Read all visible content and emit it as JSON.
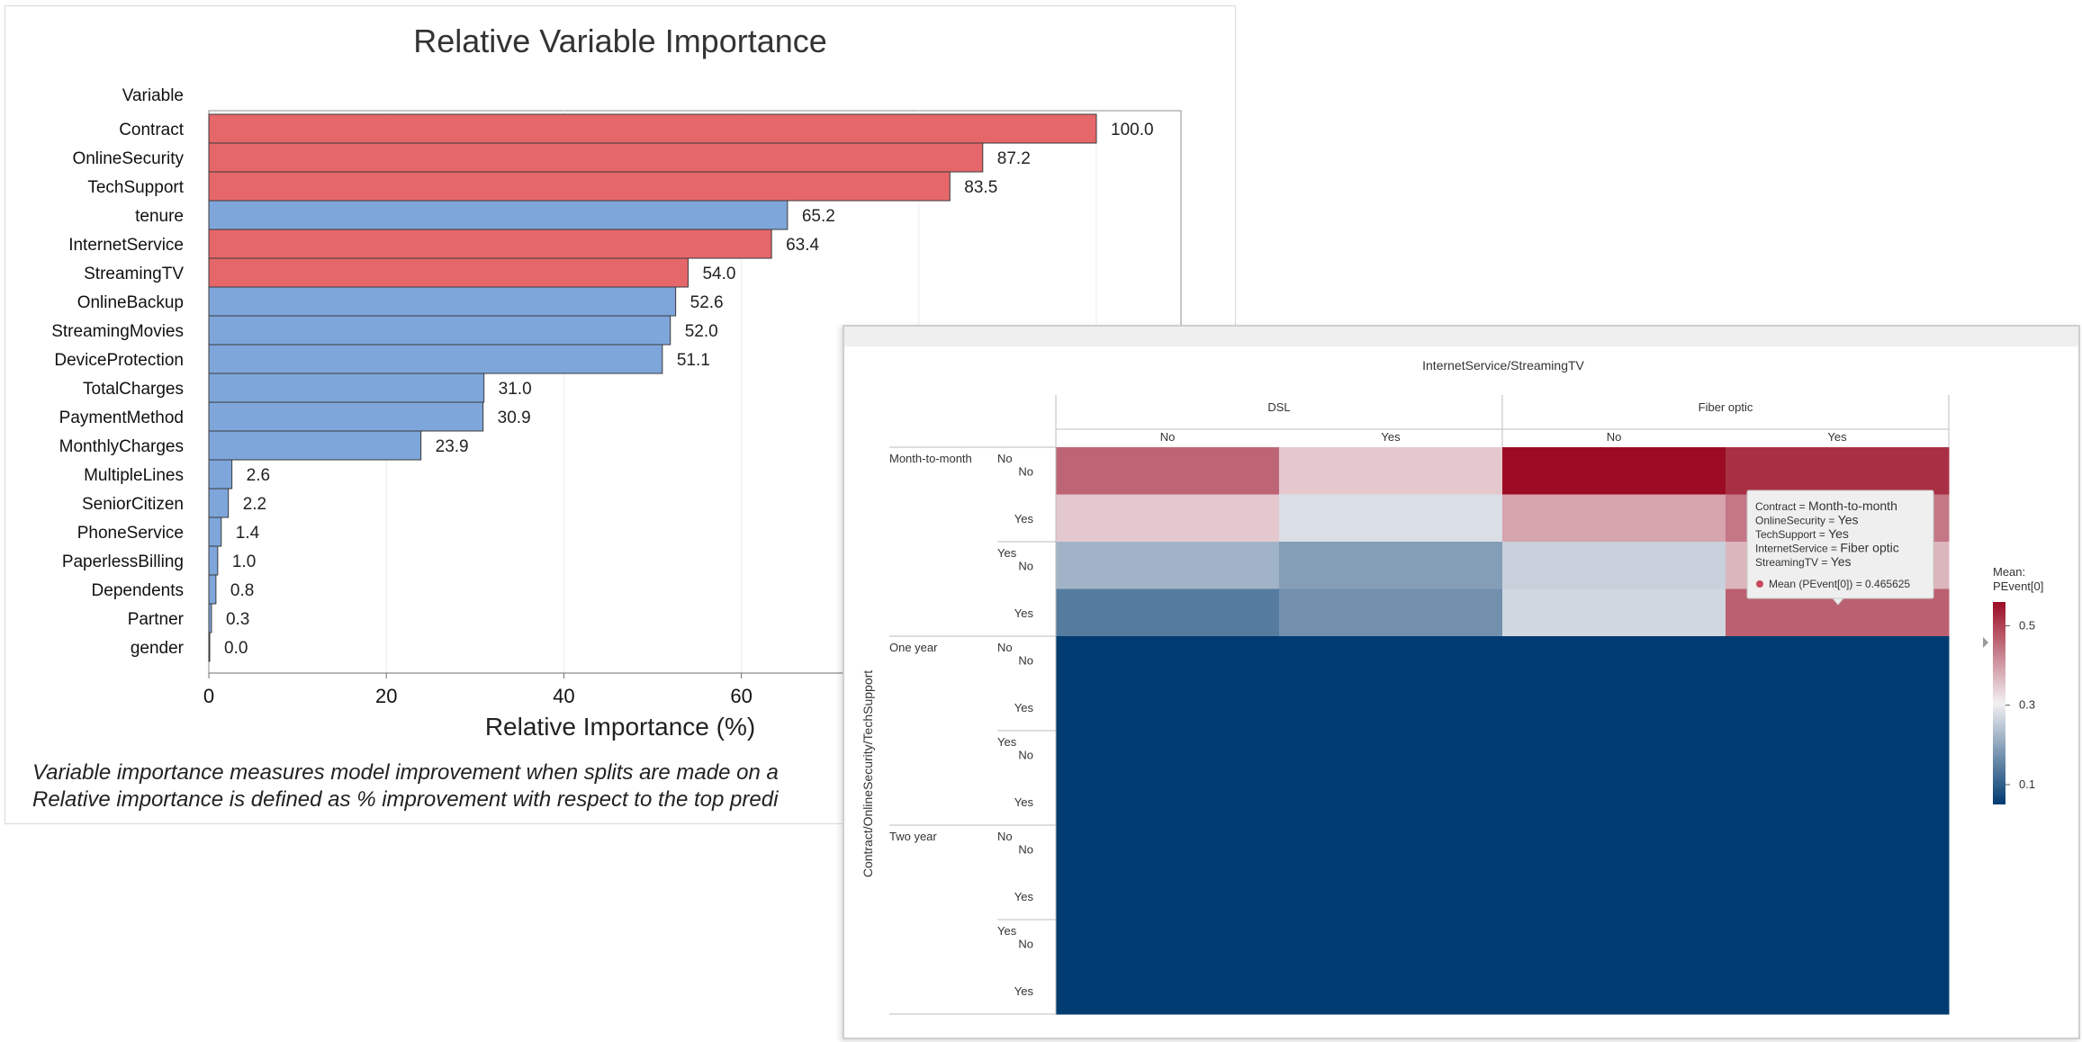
{
  "chart_data": [
    {
      "type": "bar",
      "orientation": "horizontal",
      "title": "Relative Variable Importance",
      "ylabel": "Variable",
      "xlabel": "Relative Importance (%)",
      "xticks": [
        0,
        20,
        40,
        60
      ],
      "xlim": [
        0,
        100
      ],
      "grid": true,
      "categories": [
        "Contract",
        "OnlineSecurity",
        "TechSupport",
        "tenure",
        "InternetService",
        "StreamingTV",
        "OnlineBackup",
        "StreamingMovies",
        "DeviceProtection",
        "TotalCharges",
        "PaymentMethod",
        "MonthlyCharges",
        "MultipleLines",
        "SeniorCitizen",
        "PhoneService",
        "PaperlessBilling",
        "Dependents",
        "Partner",
        "gender"
      ],
      "values": [
        100.0,
        87.2,
        83.5,
        65.2,
        63.4,
        54.0,
        52.6,
        52.0,
        51.1,
        31.0,
        30.9,
        23.9,
        2.6,
        2.2,
        1.4,
        1.0,
        0.8,
        0.3,
        0.0
      ],
      "value_labels": [
        "100.0",
        "87.2",
        "83.5",
        "65.2",
        "63.4",
        "54.0",
        "52.6",
        "52.0",
        "51.1",
        "31.0",
        "30.9",
        "23.9",
        "2.6",
        "2.2",
        "1.4",
        "1.0",
        "0.8",
        "0.3",
        "0.0"
      ],
      "highlighted": [
        true,
        true,
        true,
        false,
        true,
        true,
        false,
        false,
        false,
        false,
        false,
        false,
        false,
        false,
        false,
        false,
        false,
        false,
        false
      ],
      "colors": {
        "highlight": "#e5676a",
        "normal": "#7ea6db",
        "edge": "#3a3a3a"
      },
      "footnote": [
        "Variable importance measures model improvement when splits are made on a",
        "Relative importance is defined as % improvement with respect to the top predi"
      ]
    },
    {
      "type": "heatmap",
      "title": "InternetService/StreamingTV",
      "ylabel": "Contract/OnlineSecurity/TechSupport",
      "column_groups": [
        {
          "label": "DSL",
          "columns": [
            "No",
            "Yes"
          ]
        },
        {
          "label": "Fiber optic",
          "columns": [
            "No",
            "Yes"
          ]
        }
      ],
      "row_groups": [
        {
          "label": "Month-to-month",
          "subgroups": [
            {
              "label": "No",
              "rows": [
                "No",
                "Yes"
              ]
            },
            {
              "label": "Yes",
              "rows": [
                "No",
                "Yes"
              ]
            }
          ]
        },
        {
          "label": "One year",
          "subgroups": [
            {
              "label": "No",
              "rows": [
                "No",
                "Yes"
              ]
            },
            {
              "label": "Yes",
              "rows": [
                "No",
                "Yes"
              ]
            }
          ]
        },
        {
          "label": "Two year",
          "subgroups": [
            {
              "label": "No",
              "rows": [
                "No",
                "Yes"
              ]
            },
            {
              "label": "Yes",
              "rows": [
                "No",
                "Yes"
              ]
            }
          ]
        }
      ],
      "values": [
        [
          0.46,
          0.35,
          0.56,
          0.52
        ],
        [
          0.35,
          0.28,
          0.39,
          0.44
        ],
        [
          0.22,
          0.19,
          0.26,
          0.37
        ],
        [
          0.14,
          0.17,
          0.27,
          0.465625
        ],
        [
          0.05,
          0.05,
          0.05,
          0.05
        ],
        [
          0.05,
          0.05,
          0.05,
          0.05
        ],
        [
          0.05,
          0.05,
          0.05,
          0.05
        ],
        [
          0.05,
          0.05,
          0.05,
          0.05
        ],
        [
          0.05,
          0.05,
          0.05,
          0.05
        ],
        [
          0.05,
          0.05,
          0.05,
          0.05
        ],
        [
          0.05,
          0.05,
          0.05,
          0.05
        ],
        [
          0.05,
          0.05,
          0.05,
          0.05
        ]
      ],
      "legend": {
        "title": [
          "Mean:",
          "PEvent[0]"
        ],
        "ticks": [
          "0.5",
          "0.3",
          "0.1"
        ],
        "tick_values": [
          0.5,
          0.3,
          0.1
        ],
        "range": [
          0.05,
          0.56
        ],
        "placement": "right"
      },
      "tooltip": {
        "lines": [
          {
            "key": "Contract = ",
            "value": "Month-to-month"
          },
          {
            "key": "OnlineSecurity = ",
            "value": "Yes"
          },
          {
            "key": "TechSupport = ",
            "value": "Yes"
          },
          {
            "key": "InternetService = ",
            "value": "Fiber optic"
          },
          {
            "key": "StreamingTV = ",
            "value": "Yes"
          }
        ],
        "mean_line": "Mean (PEvent[0]) = 0.465625"
      },
      "colors": {
        "high": "#9b0c24",
        "mid": "#f2f0f2",
        "low": "#003b71"
      }
    }
  ]
}
